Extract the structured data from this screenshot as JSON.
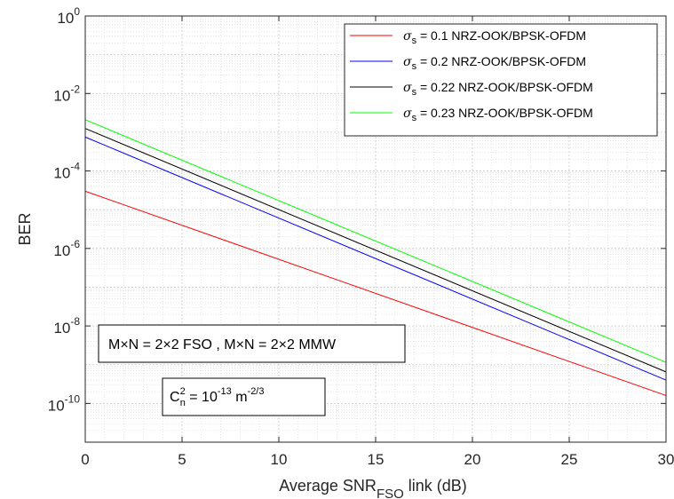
{
  "chart_data": {
    "type": "line",
    "title": "",
    "xlabel": {
      "main": "Average SNR",
      "sub": "FSO",
      "suffix": " link (dB)"
    },
    "ylabel": "BER",
    "xlim": [
      0,
      30
    ],
    "ylim": [
      1e-11,
      1
    ],
    "yscale": "log",
    "grid": true,
    "minor_grid": true,
    "legend_position": "top-right",
    "x_ticks": [
      "0",
      "5",
      "10",
      "15",
      "20",
      "25",
      "30"
    ],
    "y_ticks": [
      {
        "base": "10",
        "exp": "0"
      },
      {
        "base": "10",
        "exp": "-2"
      },
      {
        "base": "10",
        "exp": "-4"
      },
      {
        "base": "10",
        "exp": "-6"
      },
      {
        "base": "10",
        "exp": "-8"
      },
      {
        "base": "10",
        "exp": "-10"
      }
    ],
    "series": [
      {
        "legend_symbol": "σ",
        "legend_sub": "s",
        "legend_text": " = 0.1 NRZ-OOK/BPSK-OFDM",
        "color": "#ff0000",
        "x": [
          0,
          30
        ],
        "y": [
          3e-05,
          1.6e-10
        ]
      },
      {
        "legend_symbol": "σ",
        "legend_sub": "s",
        "legend_text": " = 0.2 NRZ-OOK/BPSK-OFDM",
        "color": "#0000ff",
        "x": [
          0,
          30
        ],
        "y": [
          0.00075,
          4e-10
        ]
      },
      {
        "legend_symbol": "σ",
        "legend_sub": "s",
        "legend_text": " = 0.22 NRZ-OOK/BPSK-OFDM",
        "color": "#000000",
        "x": [
          0,
          30
        ],
        "y": [
          0.00125,
          6.5e-10
        ]
      },
      {
        "legend_symbol": "σ",
        "legend_sub": "s",
        "legend_text": " = 0.23 NRZ-OOK/BPSK-OFDM",
        "color": "#00ff00",
        "x": [
          0,
          30
        ],
        "y": [
          0.0021,
          1.15e-09
        ]
      }
    ],
    "annotations": [
      {
        "text": "M×N = 2×2 FSO , M×N = 2×2 MMW"
      },
      {
        "base": "C",
        "base_sup": "2",
        "base_sub": "n",
        "eq": " = 10",
        "eq_sup": "-13",
        "unit": " m",
        "unit_sup": "-2/3"
      }
    ]
  }
}
